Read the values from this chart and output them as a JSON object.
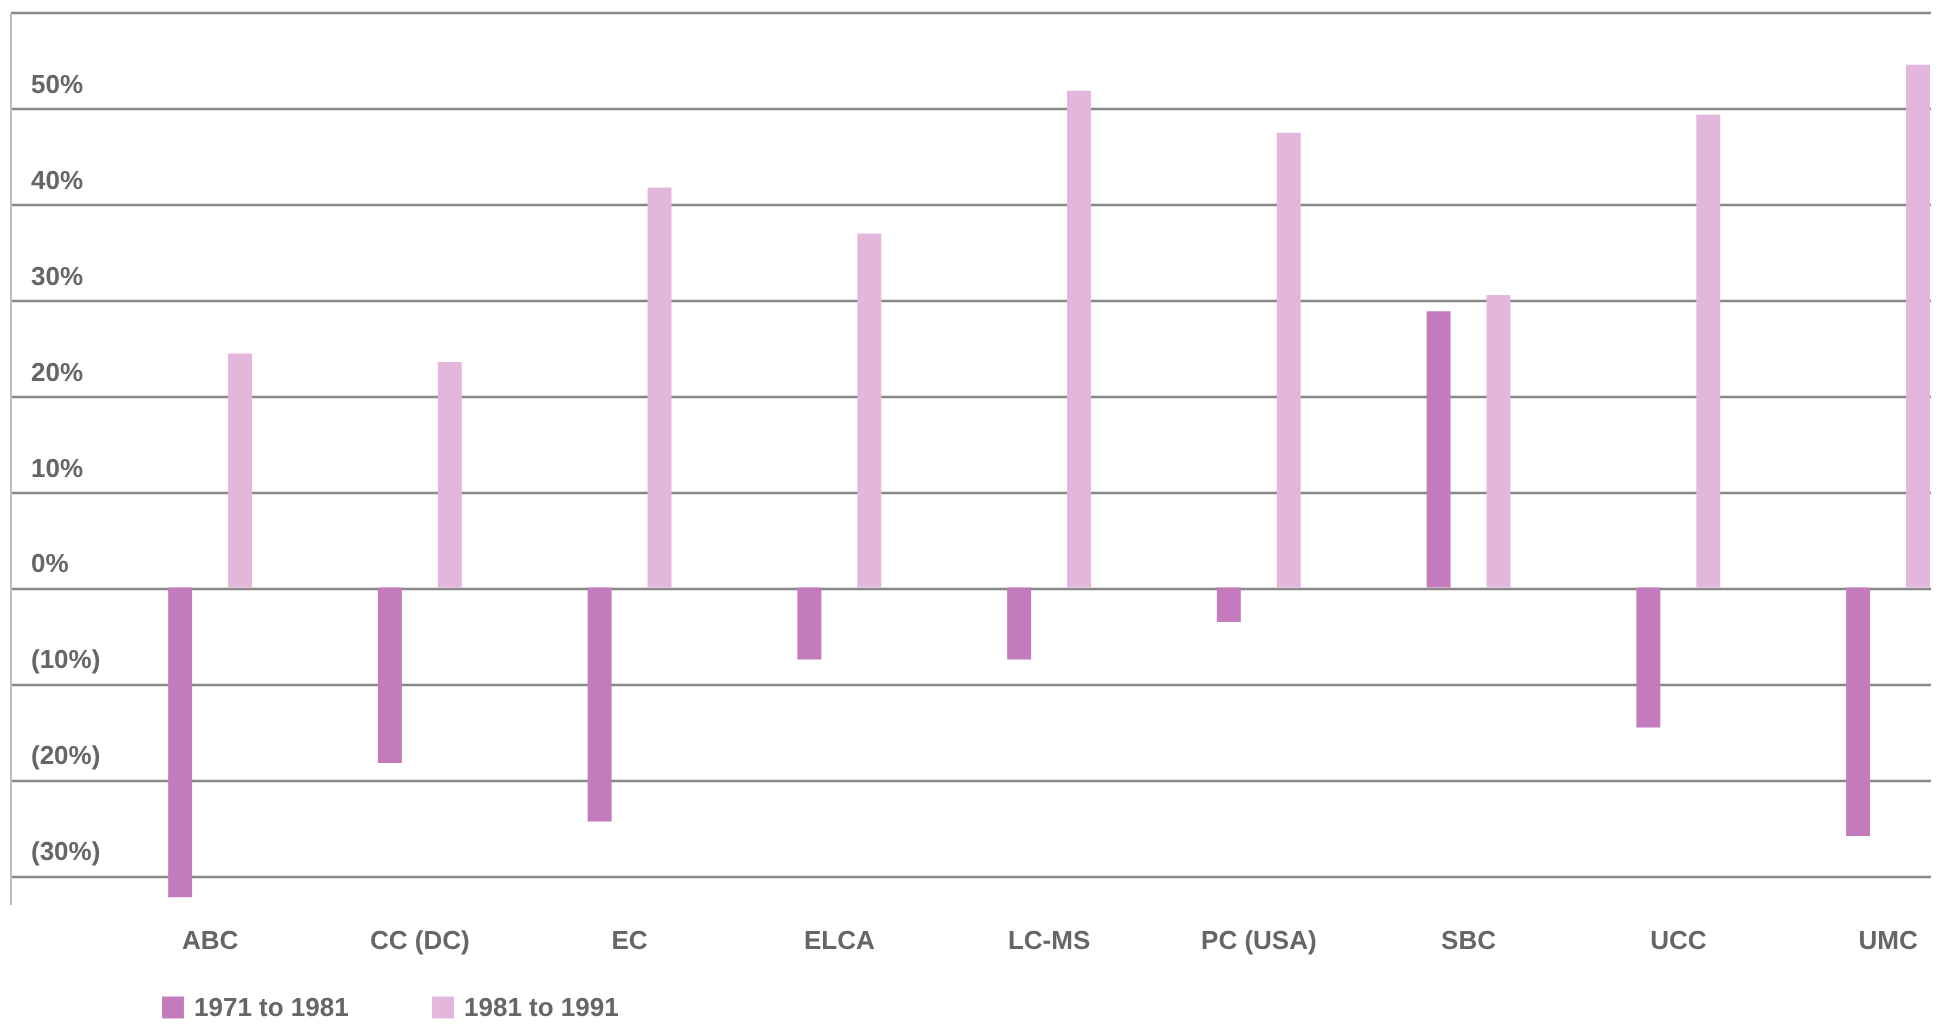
{
  "chart_data": {
    "type": "bar",
    "categories": [
      "ABC",
      "CC (DC)",
      "EC",
      "ELCA",
      "LC-MS",
      "PC (USA)",
      "SBC",
      "UCC",
      "UMC"
    ],
    "series": [
      {
        "name": "1971 to 1981",
        "color": "#c47bbd",
        "values": [
          -32.3,
          -18.3,
          -24.4,
          -7.5,
          -7.5,
          -3.6,
          28.8,
          -14.6,
          -25.9
        ]
      },
      {
        "name": "1981 to 1991",
        "color": "#e3b7dc",
        "values": [
          24.4,
          23.5,
          41.7,
          36.9,
          51.8,
          47.4,
          30.5,
          49.3,
          54.5
        ]
      }
    ],
    "ylim": [
      -33,
      60
    ],
    "yticks": [
      {
        "value": -30,
        "label": "(30%)"
      },
      {
        "value": -20,
        "label": "(20%)"
      },
      {
        "value": -10,
        "label": "(10%)"
      },
      {
        "value": 0,
        "label": "0%"
      },
      {
        "value": 10,
        "label": "10%"
      },
      {
        "value": 20,
        "label": "20%"
      },
      {
        "value": 30,
        "label": "30%"
      },
      {
        "value": 40,
        "label": "40%"
      },
      {
        "value": 50,
        "label": "50%"
      },
      {
        "value": 60,
        "label": null
      }
    ],
    "grid": true,
    "legend": "bottom left"
  }
}
